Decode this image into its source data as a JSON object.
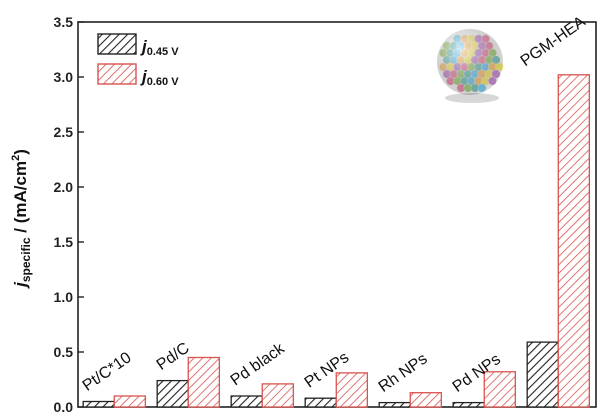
{
  "chart_data": {
    "type": "bar",
    "categories": [
      "Pt/C*10",
      "Pd/C",
      "Pd black",
      "Pt NPs",
      "Rh NPs",
      "Pd NPs",
      "PGM-HEA"
    ],
    "series": [
      {
        "name_main": "j",
        "name_sub": "0.45 V",
        "color": "#222222",
        "hatch": "black-diagonal",
        "values": [
          0.05,
          0.24,
          0.1,
          0.08,
          0.04,
          0.04,
          0.59
        ]
      },
      {
        "name_main": "j",
        "name_sub": "0.60 V",
        "color": "#d9534f",
        "hatch": "red-diagonal",
        "values": [
          0.1,
          0.45,
          0.21,
          0.31,
          0.13,
          0.32,
          3.02
        ]
      }
    ],
    "ylabel_main": "j",
    "ylabel_sub": "specific",
    "ylabel_rest": " / (mA/cm",
    "ylabel_sup": "2",
    "ylabel_end": ")",
    "ylim": [
      0,
      3.5
    ],
    "yticks": [
      "0.0",
      "0.5",
      "1.0",
      "1.5",
      "2.0",
      "2.5",
      "3.0",
      "3.5"
    ],
    "legend_position": "top-left",
    "grid": false,
    "inset_image": "nanoparticle-sphere"
  }
}
